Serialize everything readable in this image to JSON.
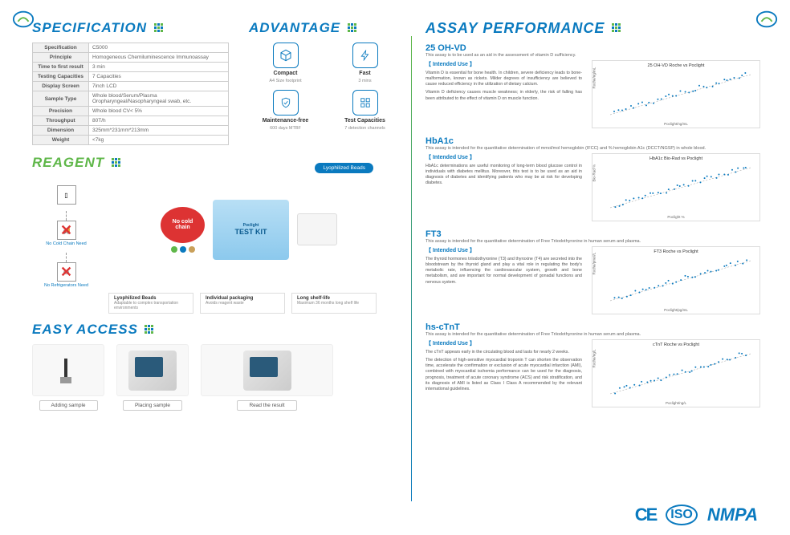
{
  "headings": {
    "spec": "SPECIFICATION",
    "adv": "ADVANTAGE",
    "reag": "REAGENT",
    "easy": "EASY ACCESS",
    "assay": "ASSAY PERFORMANCE"
  },
  "spec": [
    [
      "Specification",
      "C5000"
    ],
    [
      "Principle",
      "Homogeneous Chemiluminescence Immunoassay"
    ],
    [
      "Time to first result",
      "3 min"
    ],
    [
      "Testing Capacities",
      "7 Capacities"
    ],
    [
      "Display Screen",
      "7inch LCD"
    ],
    [
      "Sample Type",
      "Whole blood/Serum/Plasma Oropharyngeal/Nasopharyngeal swab, etc."
    ],
    [
      "Precision",
      "Whole blood CV< 5%"
    ],
    [
      "Throughput",
      "80T/h"
    ],
    [
      "Dimension",
      "325mm*231mm*213mm"
    ],
    [
      "Weight",
      "<7kg"
    ]
  ],
  "advantages": [
    {
      "title": "Compact",
      "sub": "A4 Size footprint",
      "icon": "cube"
    },
    {
      "title": "Fast",
      "sub": "3 mins",
      "icon": "bolt"
    },
    {
      "title": "Maintenance-free",
      "sub": "600 days MTBF",
      "icon": "shield"
    },
    {
      "title": "Test Capacities",
      "sub": "7 detection channels",
      "icon": "grid"
    }
  ],
  "reagent": {
    "noCold": "No Cold Chain Need",
    "noFridge": "No Refrigerators Need",
    "burst": "No cold chain",
    "lyo": "Lyophilized Beads",
    "kit": "TEST KIT",
    "brand": "Poclight",
    "items": [
      {
        "t": "Lyophilized Beads",
        "d": "Adaptable to complex transportation environments"
      },
      {
        "t": "Individual packaging",
        "d": "Avoids reagent waste"
      },
      {
        "t": "Long shelf-life",
        "d": "Maximum 36 months long shelf life"
      }
    ]
  },
  "easy": [
    {
      "lbl": "Adding sample"
    },
    {
      "lbl": "Placing sample"
    },
    {
      "lbl": "Read the result"
    }
  ],
  "assays": [
    {
      "name": "25 OH-VD",
      "desc": "This assay is to be used as an aid in the assessment of vitamin D sufficiency.",
      "body": [
        "Vitamin D is essential for bone health. In children, severe deficiency leads to bone-malformation, known as rickets. Milder degrees of insufficiency are believed to cause reduced efficiency in the utilization of dietary calcium.",
        "Vitamin D deficiency causes muscle weakness; in elderly, the risk of falling has been attributed to the effect of vitamin D on muscle function."
      ],
      "chart": {
        "title": "25 OH-VD Roche vs Poclight",
        "xlabel": "Poclight/ng/mL",
        "ylabel": "Roche/ng/mL",
        "color": "#0a7abf"
      }
    },
    {
      "name": "HbA1c",
      "desc": "This assay is intended for the quantitative determination of mmol/mol hemoglobin (IFCC) and % hemoglobin A1c (DCCT/NGSP) in whole blood.",
      "body": [
        "HbA1c determinations are useful monitoring of long-term blood glucose control in individuals with diabetes mellitus. Moreover, this test is to be used as an aid in diagnosis of diabetes and identifying patients who may be at risk for developing diabetes."
      ],
      "chart": {
        "title": "HbA1c Bio-Rad vs Poclight",
        "xlabel": "Poclight %",
        "ylabel": "Bio-Rad %",
        "color": "#0a7abf"
      }
    },
    {
      "name": "FT3",
      "desc": "This assay is intended for the quantitative determination of Free Triiodothyronine in human serum and plasma.",
      "body": [
        "The thyroid hormones triiodothyronine (T3) and thyroxine (T4) are secreted into the bloodstream by the thyroid gland and play a vital role in regulating the body's metabolic rate, influencing the cardiovascular system, growth and bone metabolism, and are important for normal development of gonadal functions and nervous system."
      ],
      "chart": {
        "title": "FT3 Roche vs Poclight",
        "xlabel": "Poclight/pg/mL",
        "ylabel": "Roche/pmol/L",
        "color": "#0a7abf"
      }
    },
    {
      "name": "hs-cTnT",
      "desc": "This assay is intended for the quantitative determination of Free Triiodothyronine in human serum and plasma.",
      "body": [
        "The cTnT appears early in the circulating blood and lasts for nearly 2 weeks.",
        "The detection of high-sensitive myocardial troponin T can shorten the observation time, accelerate the confirmation or exclusion of acute myocardial infarction (AMI), combined with myocardial ischemia performance can be used for the diagnosis, prognosis, treatment of acute coronary syndrome (ACS) and risk stratification, and its diagnosis of AMI is listed as Class I Class A recommended by the relevant international guidelines."
      ],
      "chart": {
        "title": "cTnT Roche vs Poclight",
        "xlabel": "Poclight/ng/L",
        "ylabel": "Roche/ng/L",
        "color": "#0a7abf"
      }
    }
  ],
  "intended": "【 Intended Use 】",
  "footer": {
    "ce": "CE",
    "iso": "ISO",
    "nmpa": "NMPA"
  },
  "colors": {
    "blue": "#0a7abf",
    "green": "#5fb749",
    "red": "#d33",
    "beads": [
      "#5fb749",
      "#0a7abf",
      "#c9a05a",
      "#8a6d3b"
    ]
  }
}
